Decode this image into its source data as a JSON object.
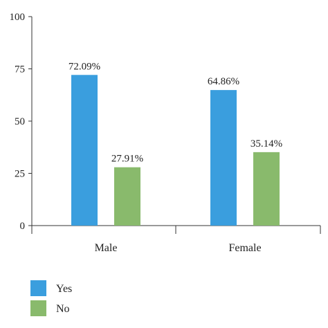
{
  "chart_data": {
    "type": "bar",
    "categories": [
      "Male",
      "Female"
    ],
    "series": [
      {
        "name": "Yes",
        "values": [
          72.09,
          64.86
        ],
        "labels": [
          "72.09%",
          "64.86%"
        ],
        "color": "#3a9ede"
      },
      {
        "name": "No",
        "values": [
          27.91,
          35.14
        ],
        "labels": [
          "27.91%",
          "35.14%"
        ],
        "color": "#89ba6c"
      }
    ],
    "title": "",
    "xlabel": "",
    "ylabel": "",
    "ylim": [
      0,
      100
    ],
    "yticks": [
      0,
      25,
      50,
      75,
      100
    ],
    "ytick_labels": [
      "0",
      "25",
      "50",
      "75",
      "100"
    ],
    "grid": false,
    "legend_position": "bottom-left"
  }
}
